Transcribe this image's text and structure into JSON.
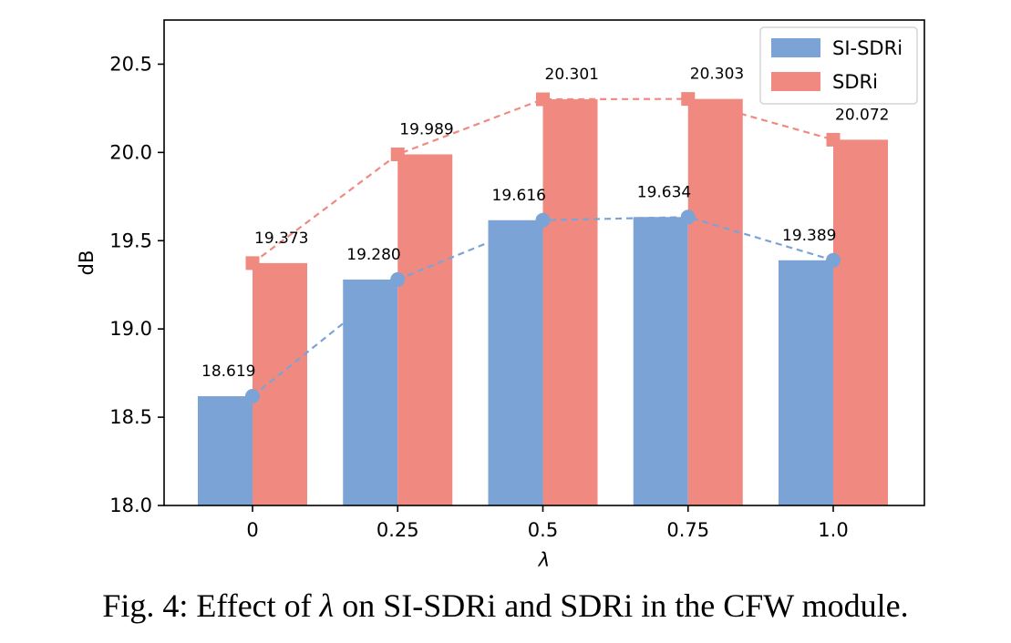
{
  "chart_data": {
    "type": "bar",
    "categories": [
      "0",
      "0.25",
      "0.5",
      "0.75",
      "1.0"
    ],
    "series": [
      {
        "name": "SI-SDRi",
        "values": [
          18.619,
          19.28,
          19.616,
          19.634,
          19.389
        ],
        "value_labels": [
          "18.619",
          "19.280",
          "19.616",
          "19.634",
          "19.389"
        ],
        "color": "#7ba3d6",
        "line_color": "#7ba3d6",
        "marker": "circle"
      },
      {
        "name": "SDRi",
        "values": [
          19.373,
          19.989,
          20.301,
          20.303,
          20.072
        ],
        "value_labels": [
          "19.373",
          "19.989",
          "20.301",
          "20.303",
          "20.072"
        ],
        "color": "#f08a80",
        "line_color": "#f08a80",
        "marker": "square"
      }
    ],
    "xlabel": "λ",
    "ylabel": "dB",
    "ylim": [
      18.0,
      20.75
    ],
    "yticks": [
      18.0,
      18.5,
      19.0,
      19.5,
      20.0,
      20.5
    ],
    "ytick_labels": [
      "18.0",
      "18.5",
      "19.0",
      "19.5",
      "20.0",
      "20.5"
    ],
    "line_overlay": "dashed",
    "grid": false,
    "legend_position": "top-right"
  },
  "caption": {
    "prefix": "Fig. 4: Effect of ",
    "symbol": "λ",
    "suffix": " on SI-SDRi and SDRi in the CFW module."
  }
}
